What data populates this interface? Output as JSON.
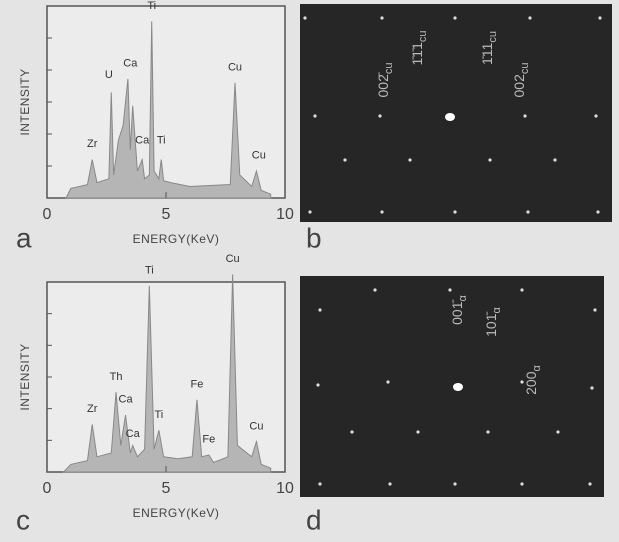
{
  "chart_data": [
    {
      "type": "area",
      "x_label": "ENERGY(KeV)",
      "y_label": "INTENSITY",
      "xlim": [
        0,
        10
      ],
      "xticks": [
        0,
        5,
        10
      ],
      "ylim": [
        0,
        100
      ],
      "color": "#b5b5b5",
      "x": [
        0.8,
        1.0,
        1.7,
        1.9,
        2.1,
        2.6,
        2.7,
        2.8,
        3.0,
        3.2,
        3.4,
        3.5,
        3.6,
        3.8,
        4.0,
        4.1,
        4.3,
        4.4,
        4.5,
        4.7,
        4.8,
        4.9,
        5.2,
        6.0,
        7.7,
        7.9,
        8.1,
        8.6,
        8.8,
        9.0,
        9.4
      ],
      "values": [
        0,
        5,
        7,
        20,
        8,
        10,
        55,
        12,
        30,
        38,
        62,
        25,
        48,
        14,
        20,
        10,
        12,
        92,
        14,
        10,
        20,
        9,
        8,
        6,
        7,
        60,
        12,
        6,
        14,
        4,
        2
      ],
      "annotations": [
        {
          "text": "Zr",
          "x": 1.9,
          "y": 28
        },
        {
          "text": "U",
          "x": 2.6,
          "y": 64
        },
        {
          "text": "Ca",
          "x": 3.5,
          "y": 70
        },
        {
          "text": "Ti",
          "x": 4.4,
          "y": 100
        },
        {
          "text": "Ca",
          "x": 4.0,
          "y": 30
        },
        {
          "text": "Ti",
          "x": 4.8,
          "y": 30
        },
        {
          "text": "Cu",
          "x": 7.9,
          "y": 68
        },
        {
          "text": "Cu",
          "x": 8.9,
          "y": 22
        }
      ]
    },
    {
      "type": "area",
      "x_label": "ENERGY(KeV)",
      "y_label": "INTENSITY",
      "xlim": [
        0,
        10
      ],
      "xticks": [
        0,
        5,
        10
      ],
      "ylim": [
        0,
        100
      ],
      "color": "#b5b5b5",
      "x": [
        0.7,
        1.0,
        1.7,
        1.9,
        2.1,
        2.7,
        2.9,
        3.1,
        3.3,
        3.5,
        3.6,
        3.8,
        4.1,
        4.3,
        4.5,
        4.7,
        4.9,
        5.5,
        6.1,
        6.3,
        6.5,
        6.8,
        7.0,
        7.6,
        7.8,
        8.0,
        8.6,
        8.8,
        9.0,
        9.4
      ],
      "values": [
        0,
        4,
        6,
        25,
        8,
        10,
        42,
        14,
        30,
        10,
        14,
        8,
        12,
        98,
        12,
        22,
        8,
        7,
        8,
        38,
        8,
        9,
        5,
        8,
        104,
        14,
        8,
        16,
        4,
        2
      ],
      "annotations": [
        {
          "text": "Zr",
          "x": 1.9,
          "y": 33
        },
        {
          "text": "Th",
          "x": 2.9,
          "y": 50
        },
        {
          "text": "Ca",
          "x": 3.3,
          "y": 38
        },
        {
          "text": "Ca",
          "x": 3.6,
          "y": 20
        },
        {
          "text": "Ti",
          "x": 4.3,
          "y": 106
        },
        {
          "text": "Ti",
          "x": 4.7,
          "y": 30
        },
        {
          "text": "Fe",
          "x": 6.3,
          "y": 46
        },
        {
          "text": "Fe",
          "x": 6.8,
          "y": 17
        },
        {
          "text": "Cu",
          "x": 7.8,
          "y": 112
        },
        {
          "text": "Cu",
          "x": 8.8,
          "y": 24
        }
      ]
    }
  ],
  "panel_labels": [
    "a",
    "b",
    "c",
    "d"
  ],
  "diffraction": [
    {
      "labels": [
        {
          "main": "002̄",
          "sub": "cu"
        },
        {
          "main": "1̄1̄1",
          "sub": "cu"
        },
        {
          "main": "1̄11",
          "sub": "cu"
        },
        {
          "main": "002",
          "sub": "cu"
        }
      ]
    },
    {
      "labels": [
        {
          "main": "001̄",
          "sub": "α"
        },
        {
          "main": "101̄",
          "sub": "α"
        },
        {
          "main": "200",
          "sub": "α"
        }
      ]
    }
  ]
}
